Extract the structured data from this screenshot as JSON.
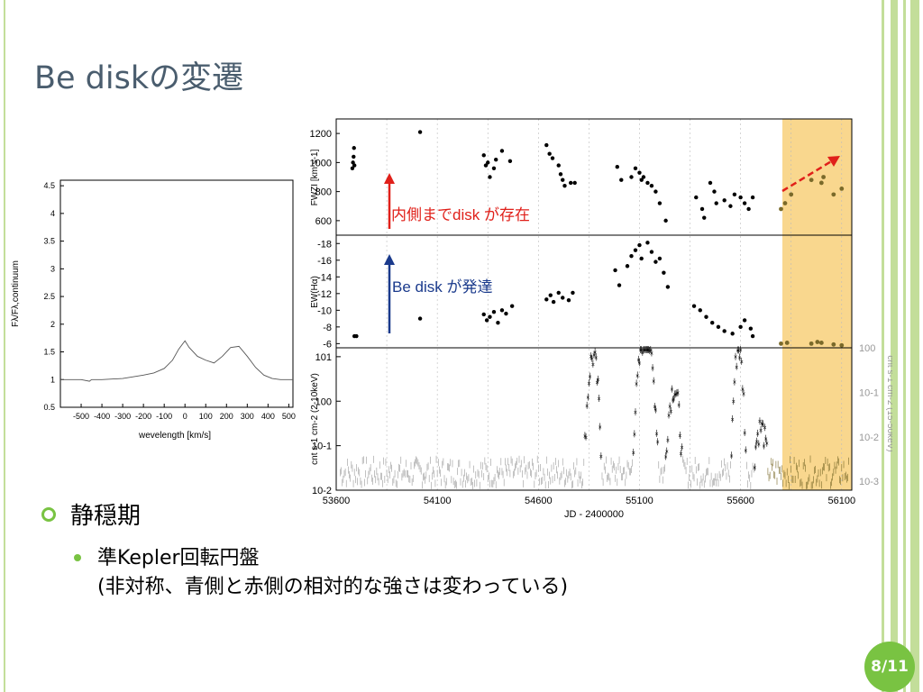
{
  "slide": {
    "title": "Be diskの変遷",
    "page_number": "8/11",
    "accent_color": "#79c342",
    "title_color": "#4a5d6e"
  },
  "bullets": {
    "level1": "静穏期",
    "level2_line1": "準Kepler回転円盤",
    "level2_line2": "(非対称、青側と赤側の相対的な強さは変わっている)"
  },
  "annotations": {
    "red_text": "内側までdisk が存在",
    "blue_text": "Be disk が発達",
    "red_color": "#e0201a",
    "blue_color": "#1a3a8c",
    "highlight_color": "#f8d07a"
  },
  "chart_data": [
    {
      "type": "line",
      "ylabel": "Fλ/Fλ,continuum",
      "xlabel": "wevelength [km/s]",
      "xlim": [
        -600,
        520
      ],
      "ylim": [
        0.5,
        4.6
      ],
      "x_ticks": [
        "-500",
        "-400",
        "-300",
        "-200",
        "-100",
        "0",
        "100",
        "200",
        "300",
        "400",
        "500"
      ],
      "y_ticks": [
        "0.5",
        "1",
        "1.5",
        "2",
        "2.5",
        "3",
        "3.5",
        "4",
        "4.5"
      ],
      "x": [
        -600,
        -500,
        -460,
        -450,
        -440,
        -400,
        -300,
        -250,
        -200,
        -150,
        -100,
        -60,
        -30,
        0,
        20,
        60,
        100,
        140,
        180,
        220,
        260,
        300,
        340,
        380,
        420,
        460,
        500,
        520
      ],
      "y": [
        1.0,
        1.0,
        0.97,
        1.0,
        1.0,
        1.0,
        1.02,
        1.05,
        1.08,
        1.12,
        1.2,
        1.35,
        1.55,
        1.7,
        1.58,
        1.42,
        1.35,
        1.3,
        1.42,
        1.58,
        1.6,
        1.42,
        1.22,
        1.08,
        1.02,
        1.0,
        1.0,
        1.0
      ]
    },
    {
      "type": "scatter",
      "ylabel": "FWZI [km s-1]",
      "xlim": [
        53600,
        56150
      ],
      "ylim": [
        500,
        1300
      ],
      "y_ticks": [
        "600",
        "800",
        "1000",
        "1200"
      ],
      "series": [
        {
          "values": [
            [
              53680,
              960
            ],
            [
              53683,
              1000
            ],
            [
              53686,
              1040
            ],
            [
              53688,
              1100
            ],
            [
              53690,
              980
            ],
            [
              54015,
              1210
            ],
            [
              54330,
              1050
            ],
            [
              54340,
              980
            ],
            [
              54350,
              1000
            ],
            [
              54360,
              900
            ],
            [
              54380,
              960
            ],
            [
              54390,
              1020
            ],
            [
              54420,
              1080
            ],
            [
              54460,
              1010
            ],
            [
              54640,
              1120
            ],
            [
              54655,
              1060
            ],
            [
              54670,
              1030
            ],
            [
              54700,
              980
            ],
            [
              54710,
              920
            ],
            [
              54720,
              880
            ],
            [
              54730,
              840
            ],
            [
              54760,
              860
            ],
            [
              54780,
              860
            ],
            [
              54990,
              970
            ],
            [
              55010,
              880
            ],
            [
              55060,
              900
            ],
            [
              55080,
              960
            ],
            [
              55100,
              930
            ],
            [
              55110,
              880
            ],
            [
              55120,
              900
            ],
            [
              55140,
              860
            ],
            [
              55160,
              840
            ],
            [
              55180,
              800
            ],
            [
              55200,
              720
            ],
            [
              55230,
              600
            ],
            [
              55380,
              760
            ],
            [
              55410,
              680
            ],
            [
              55420,
              620
            ],
            [
              55450,
              860
            ],
            [
              55470,
              800
            ],
            [
              55480,
              720
            ],
            [
              55520,
              740
            ],
            [
              55550,
              700
            ],
            [
              55570,
              780
            ],
            [
              55600,
              760
            ],
            [
              55620,
              720
            ],
            [
              55640,
              680
            ],
            [
              55660,
              760
            ]
          ]
        },
        {
          "values": [
            [
              55800,
              680
            ],
            [
              55820,
              720
            ],
            [
              55850,
              780
            ],
            [
              55950,
              880
            ],
            [
              56000,
              860
            ],
            [
              56010,
              900
            ],
            [
              56060,
              780
            ],
            [
              56100,
              820
            ]
          ]
        }
      ]
    },
    {
      "type": "scatter",
      "ylabel": "EW(Hα)",
      "xlim": [
        53600,
        56150
      ],
      "ylim": [
        -5.5,
        -19
      ],
      "y_ticks": [
        "-18",
        "-16",
        "-14",
        "-12",
        "-10",
        "-8",
        "-6"
      ],
      "series": [
        {
          "values": [
            [
              53690,
              -6.9
            ],
            [
              53700,
              -6.9
            ],
            [
              54015,
              -9
            ],
            [
              54330,
              -9.5
            ],
            [
              54345,
              -8.8
            ],
            [
              54360,
              -9.2
            ],
            [
              54380,
              -9.8
            ],
            [
              54400,
              -8.5
            ],
            [
              54420,
              -10
            ],
            [
              54440,
              -9.6
            ],
            [
              54470,
              -10.5
            ],
            [
              54640,
              -11.3
            ],
            [
              54660,
              -11.8
            ],
            [
              54675,
              -11.0
            ],
            [
              54700,
              -12.1
            ],
            [
              54720,
              -11.5
            ],
            [
              54750,
              -11.2
            ],
            [
              54770,
              -12.1
            ],
            [
              54980,
              -14.8
            ],
            [
              55000,
              -13
            ],
            [
              55040,
              -15.3
            ],
            [
              55060,
              -16.5
            ],
            [
              55080,
              -17.2
            ],
            [
              55100,
              -17.8
            ],
            [
              55110,
              -16.2
            ],
            [
              55140,
              -18.1
            ],
            [
              55160,
              -17.0
            ],
            [
              55180,
              -15.8
            ],
            [
              55200,
              -16.2
            ],
            [
              55220,
              -14.5
            ],
            [
              55240,
              -12.8
            ],
            [
              55370,
              -10.5
            ],
            [
              55400,
              -10
            ],
            [
              55430,
              -9.2
            ],
            [
              55460,
              -8.5
            ],
            [
              55490,
              -8.0
            ],
            [
              55520,
              -7.5
            ],
            [
              55560,
              -7.2
            ],
            [
              55600,
              -8.0
            ],
            [
              55620,
              -8.8
            ],
            [
              55650,
              -7.8
            ],
            [
              55660,
              -6.9
            ]
          ]
        },
        {
          "values": [
            [
              55800,
              -6
            ],
            [
              55830,
              -6.1
            ],
            [
              55950,
              -6
            ],
            [
              55980,
              -6.2
            ],
            [
              56000,
              -6.1
            ],
            [
              56060,
              -5.9
            ],
            [
              56100,
              -5.8
            ]
          ]
        }
      ]
    },
    {
      "type": "scatter",
      "ylabel": "cnt s-1 cm-2 (2-10keV)",
      "y2label": "cnt s-1 cm-2 (15-50keV)",
      "xlabel": "JD - 2400000",
      "xlim": [
        53600,
        56150
      ],
      "x_ticks": [
        "53600",
        "54100",
        "54600",
        "55100",
        "55600",
        "56100"
      ],
      "y_ticks": [
        "10-2",
        "10-1",
        "100",
        "101"
      ],
      "y2_ticks": [
        "10-3",
        "10-2",
        "10-1",
        "100"
      ],
      "scale": "log"
    }
  ]
}
